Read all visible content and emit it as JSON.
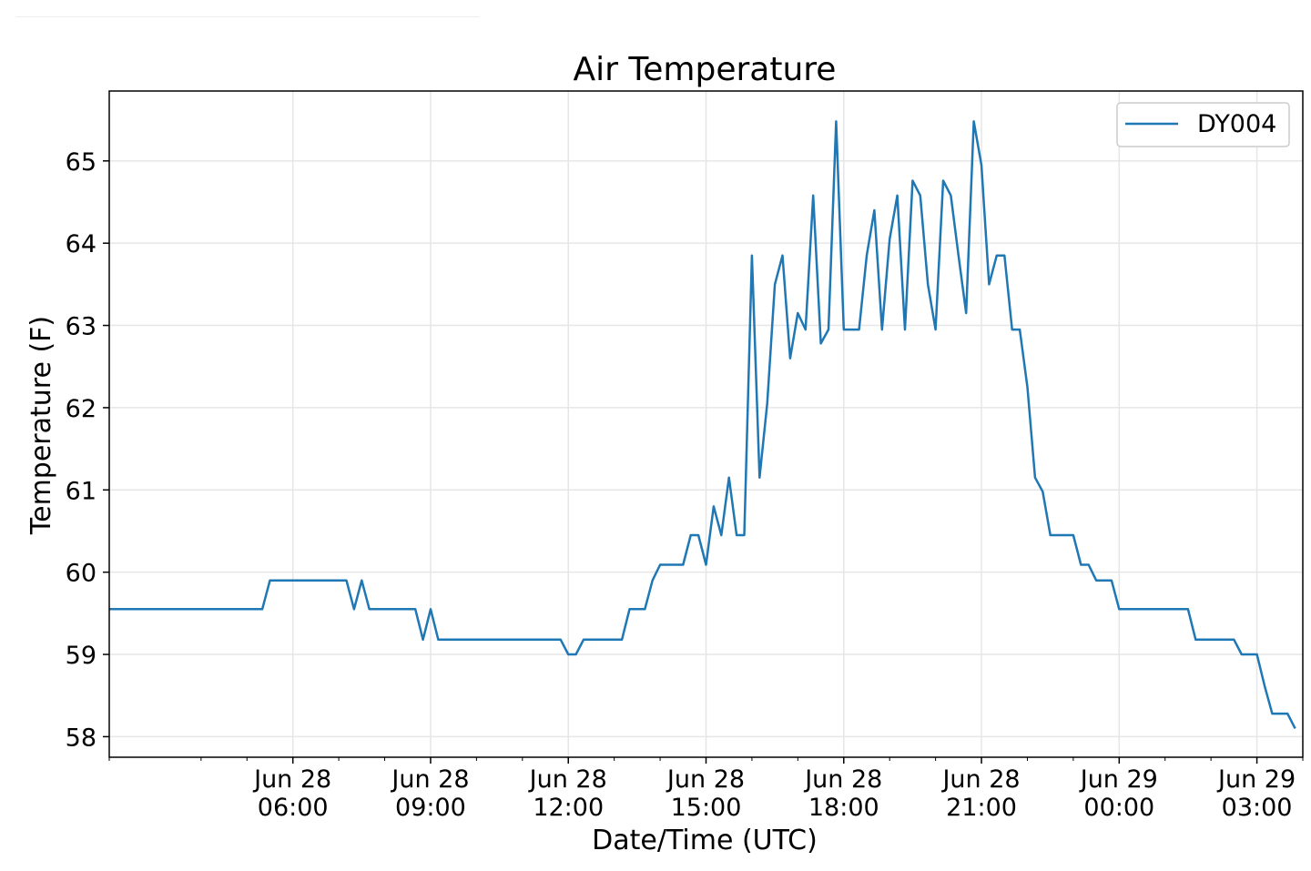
{
  "chart_data": {
    "type": "line",
    "title": "Air Temperature",
    "xlabel": "Date/Time (UTC)",
    "ylabel": "Temperature (F)",
    "ylim": [
      57.75,
      65.85
    ],
    "xlim": [
      "2018-06-28 02:00",
      "2018-06-29 04:00"
    ],
    "yticks": [
      58,
      59,
      60,
      61,
      62,
      63,
      64,
      65
    ],
    "xticks": [
      {
        "time": "2018-06-28 06:00",
        "line1": "Jun 28",
        "line2": "06:00"
      },
      {
        "time": "2018-06-28 09:00",
        "line1": "Jun 28",
        "line2": "09:00"
      },
      {
        "time": "2018-06-28 12:00",
        "line1": "Jun 28",
        "line2": "12:00"
      },
      {
        "time": "2018-06-28 15:00",
        "line1": "Jun 28",
        "line2": "15:00"
      },
      {
        "time": "2018-06-28 18:00",
        "line1": "Jun 28",
        "line2": "18:00"
      },
      {
        "time": "2018-06-28 21:00",
        "line1": "Jun 28",
        "line2": "21:00"
      },
      {
        "time": "2018-06-29 00:00",
        "line1": "Jun 29",
        "line2": "00:00"
      },
      {
        "time": "2018-06-29 03:00",
        "line1": "Jun 29",
        "line2": "03:00"
      }
    ],
    "grid": true,
    "legend": {
      "position": "top-right",
      "entries": [
        "DY004"
      ]
    },
    "series": [
      {
        "name": "DY004",
        "color": "#1f77b4",
        "points": [
          [
            "2018-06-28 02:00",
            59.55
          ],
          [
            "2018-06-28 05:20",
            59.55
          ],
          [
            "2018-06-28 05:30",
            59.9
          ],
          [
            "2018-06-28 07:10",
            59.9
          ],
          [
            "2018-06-28 07:20",
            59.55
          ],
          [
            "2018-06-28 07:30",
            59.9
          ],
          [
            "2018-06-28 07:40",
            59.55
          ],
          [
            "2018-06-28 08:40",
            59.55
          ],
          [
            "2018-06-28 08:50",
            59.18
          ],
          [
            "2018-06-28 09:00",
            59.55
          ],
          [
            "2018-06-28 09:10",
            59.18
          ],
          [
            "2018-06-28 11:50",
            59.18
          ],
          [
            "2018-06-28 12:00",
            59.0
          ],
          [
            "2018-06-28 12:10",
            59.0
          ],
          [
            "2018-06-28 12:20",
            59.18
          ],
          [
            "2018-06-28 13:10",
            59.18
          ],
          [
            "2018-06-28 13:20",
            59.55
          ],
          [
            "2018-06-28 13:40",
            59.55
          ],
          [
            "2018-06-28 13:50",
            59.9
          ],
          [
            "2018-06-28 14:00",
            60.09
          ],
          [
            "2018-06-28 14:30",
            60.09
          ],
          [
            "2018-06-28 14:40",
            60.45
          ],
          [
            "2018-06-28 14:50",
            60.45
          ],
          [
            "2018-06-28 15:00",
            60.09
          ],
          [
            "2018-06-28 15:10",
            60.8
          ],
          [
            "2018-06-28 15:20",
            60.45
          ],
          [
            "2018-06-28 15:30",
            61.15
          ],
          [
            "2018-06-28 15:40",
            60.45
          ],
          [
            "2018-06-28 15:50",
            60.45
          ],
          [
            "2018-06-28 16:00",
            63.85
          ],
          [
            "2018-06-28 16:10",
            61.15
          ],
          [
            "2018-06-28 16:20",
            62.05
          ],
          [
            "2018-06-28 16:30",
            63.5
          ],
          [
            "2018-06-28 16:40",
            63.85
          ],
          [
            "2018-06-28 16:50",
            62.6
          ],
          [
            "2018-06-28 17:00",
            63.15
          ],
          [
            "2018-06-28 17:10",
            62.95
          ],
          [
            "2018-06-28 17:20",
            64.58
          ],
          [
            "2018-06-28 17:30",
            62.78
          ],
          [
            "2018-06-28 17:40",
            62.95
          ],
          [
            "2018-06-28 17:50",
            65.48
          ],
          [
            "2018-06-28 18:00",
            62.95
          ],
          [
            "2018-06-28 18:10",
            62.95
          ],
          [
            "2018-06-28 18:20",
            62.95
          ],
          [
            "2018-06-28 18:30",
            63.85
          ],
          [
            "2018-06-28 18:40",
            64.4
          ],
          [
            "2018-06-28 18:50",
            62.95
          ],
          [
            "2018-06-28 19:00",
            64.05
          ],
          [
            "2018-06-28 19:10",
            64.58
          ],
          [
            "2018-06-28 19:20",
            62.95
          ],
          [
            "2018-06-28 19:30",
            64.76
          ],
          [
            "2018-06-28 19:40",
            64.58
          ],
          [
            "2018-06-28 19:50",
            63.5
          ],
          [
            "2018-06-28 20:00",
            62.95
          ],
          [
            "2018-06-28 20:10",
            64.76
          ],
          [
            "2018-06-28 20:20",
            64.58
          ],
          [
            "2018-06-28 20:30",
            63.85
          ],
          [
            "2018-06-28 20:40",
            63.15
          ],
          [
            "2018-06-28 20:50",
            65.48
          ],
          [
            "2018-06-28 21:00",
            64.95
          ],
          [
            "2018-06-28 21:10",
            63.5
          ],
          [
            "2018-06-28 21:20",
            63.85
          ],
          [
            "2018-06-28 21:30",
            63.85
          ],
          [
            "2018-06-28 21:40",
            62.95
          ],
          [
            "2018-06-28 21:50",
            62.95
          ],
          [
            "2018-06-28 22:00",
            62.25
          ],
          [
            "2018-06-28 22:10",
            61.15
          ],
          [
            "2018-06-28 22:20",
            60.98
          ],
          [
            "2018-06-28 22:30",
            60.45
          ],
          [
            "2018-06-28 23:00",
            60.45
          ],
          [
            "2018-06-28 23:10",
            60.09
          ],
          [
            "2018-06-28 23:20",
            60.09
          ],
          [
            "2018-06-28 23:30",
            59.9
          ],
          [
            "2018-06-28 23:50",
            59.9
          ],
          [
            "2018-06-29 00:00",
            59.55
          ],
          [
            "2018-06-29 01:30",
            59.55
          ],
          [
            "2018-06-29 01:40",
            59.18
          ],
          [
            "2018-06-29 02:30",
            59.18
          ],
          [
            "2018-06-29 02:40",
            59.0
          ],
          [
            "2018-06-29 03:00",
            59.0
          ],
          [
            "2018-06-29 03:10",
            58.62
          ],
          [
            "2018-06-29 03:20",
            58.28
          ],
          [
            "2018-06-29 03:40",
            58.28
          ],
          [
            "2018-06-29 03:50",
            58.1
          ]
        ]
      }
    ]
  }
}
